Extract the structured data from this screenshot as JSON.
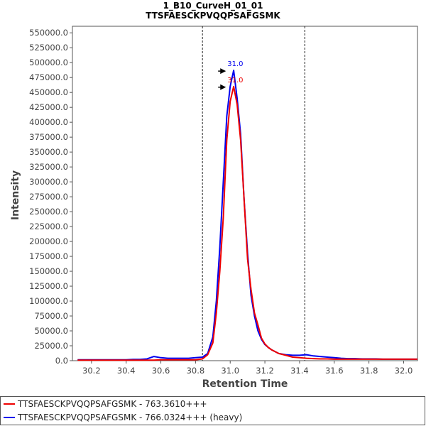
{
  "chart_data": {
    "type": "line",
    "title": "1_B10_CurveH_01_01",
    "subtitle": "TTSFAESCKPVQQPSAFGSMK",
    "xlabel": "Retention Time",
    "ylabel": "Intensity",
    "xlim": [
      30.09,
      32.08
    ],
    "ylim": [
      0,
      561000
    ],
    "x_ticks": [
      "30.2",
      "30.4",
      "30.6",
      "30.8",
      "31.0",
      "31.2",
      "31.4",
      "31.6",
      "31.8",
      "32.0"
    ],
    "x_tick_values": [
      30.2,
      30.4,
      30.6,
      30.8,
      31.0,
      31.2,
      31.4,
      31.6,
      31.8,
      32.0
    ],
    "y_ticks": [
      "0.0",
      "25000.0",
      "50000.0",
      "75000.0",
      "100000.0",
      "125000.0",
      "150000.0",
      "175000.0",
      "200000.0",
      "225000.0",
      "250000.0",
      "275000.0",
      "300000.0",
      "325000.0",
      "350000.0",
      "375000.0",
      "400000.0",
      "425000.0",
      "450000.0",
      "475000.0",
      "500000.0",
      "525000.0",
      "550000.0"
    ],
    "y_tick_values": [
      0,
      25000,
      50000,
      75000,
      100000,
      125000,
      150000,
      175000,
      200000,
      225000,
      250000,
      275000,
      300000,
      325000,
      350000,
      375000,
      400000,
      425000,
      450000,
      475000,
      500000,
      525000,
      550000
    ],
    "integration_bounds": [
      30.84,
      31.43
    ],
    "grid": false,
    "legend_position": "bottom",
    "series": [
      {
        "name": "TTSFAESCKPVQQPSAFGSMK - 763.3610+++",
        "color": "#ee0000",
        "peak_label": "31.0",
        "peak": {
          "x": 31.0,
          "y": 460000
        },
        "x": [
          30.12,
          30.16,
          30.2,
          30.24,
          30.28,
          30.32,
          30.36,
          30.4,
          30.44,
          30.48,
          30.52,
          30.56,
          30.6,
          30.64,
          30.68,
          30.72,
          30.76,
          30.8,
          30.84,
          30.87,
          30.9,
          30.92,
          30.94,
          30.96,
          30.98,
          31.0,
          31.02,
          31.04,
          31.06,
          31.08,
          31.1,
          31.12,
          31.14,
          31.16,
          31.18,
          31.2,
          31.22,
          31.24,
          31.28,
          31.32,
          31.36,
          31.4,
          31.44,
          31.48,
          31.52,
          31.56,
          31.6,
          31.64,
          31.68,
          31.72,
          31.76,
          31.8,
          31.84,
          31.88,
          31.92,
          31.96,
          32.0,
          32.04,
          32.08
        ],
        "values": [
          1000,
          1000,
          1000,
          1000,
          1000,
          1000,
          1000,
          1000,
          1000,
          1000,
          1000,
          1000,
          1500,
          1500,
          1500,
          1500,
          1500,
          1500,
          3000,
          10000,
          30000,
          80000,
          150000,
          240000,
          370000,
          435000,
          460000,
          430000,
          370000,
          270000,
          170000,
          120000,
          80000,
          60000,
          38000,
          28000,
          22000,
          18000,
          12000,
          9000,
          6000,
          5000,
          4000,
          3500,
          3000,
          3000,
          2500,
          2500,
          2500,
          2500,
          2500,
          2500,
          2500,
          2500,
          2500,
          2500,
          2500,
          2500,
          2500
        ]
      },
      {
        "name": "TTSFAESCKPVQQPSAFGSMK - 766.0324+++ (heavy)",
        "color": "#0000ee",
        "peak_label": "31.0",
        "peak": {
          "x": 31.0,
          "y": 487000
        },
        "x": [
          30.12,
          30.16,
          30.2,
          30.24,
          30.28,
          30.32,
          30.36,
          30.4,
          30.44,
          30.48,
          30.52,
          30.56,
          30.6,
          30.64,
          30.68,
          30.72,
          30.76,
          30.8,
          30.84,
          30.87,
          30.9,
          30.92,
          30.94,
          30.96,
          30.98,
          31.0,
          31.02,
          31.04,
          31.06,
          31.08,
          31.1,
          31.12,
          31.14,
          31.16,
          31.18,
          31.2,
          31.22,
          31.24,
          31.28,
          31.32,
          31.36,
          31.4,
          31.44,
          31.48,
          31.52,
          31.56,
          31.6,
          31.64,
          31.68,
          31.72,
          31.76,
          31.8,
          31.84,
          31.88,
          31.92,
          31.96,
          32.0,
          32.04,
          32.08
        ],
        "values": [
          1500,
          1500,
          1500,
          1500,
          1500,
          1500,
          1500,
          1500,
          2000,
          2000,
          3000,
          7000,
          5000,
          4000,
          4000,
          4000,
          4000,
          5000,
          6000,
          12000,
          40000,
          100000,
          190000,
          300000,
          410000,
          460000,
          487000,
          440000,
          380000,
          270000,
          180000,
          110000,
          75000,
          50000,
          36000,
          27000,
          22000,
          18000,
          12000,
          10000,
          9000,
          9000,
          10000,
          8000,
          7000,
          6000,
          5000,
          4000,
          3500,
          3500,
          3000,
          3000,
          3000,
          2500,
          2500,
          2500,
          2500,
          2500,
          2500
        ]
      }
    ]
  }
}
